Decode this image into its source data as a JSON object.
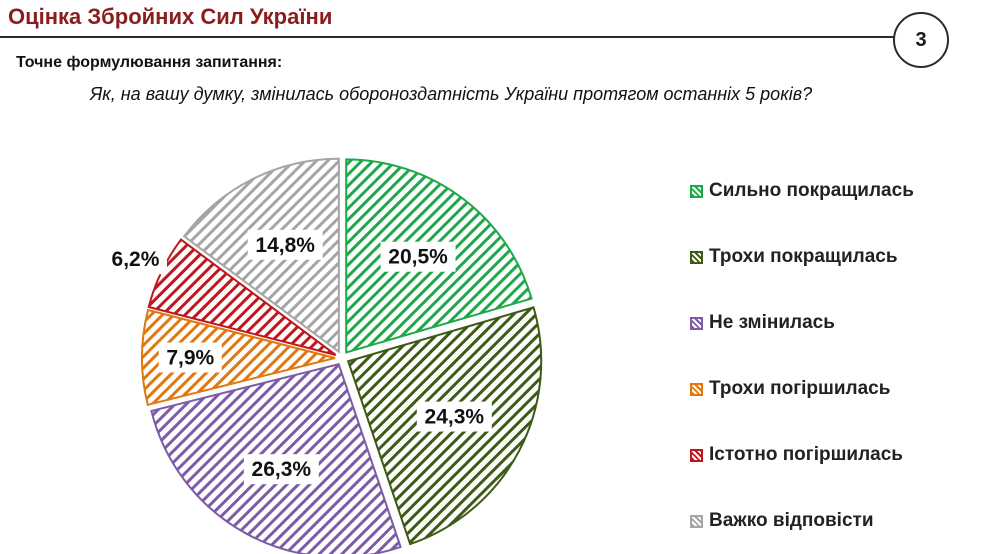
{
  "header": {
    "title": "Оцінка Збройних Сил України",
    "page_number": "3"
  },
  "question": {
    "heading": "Точне формулювання запитання:",
    "text": "Як, на вашу думку, змінилась обороноздатність України протягом останніх 5 років?"
  },
  "chart_data": {
    "type": "pie",
    "slices": [
      {
        "name": "Сильно покращилась",
        "value": 20.5,
        "label": "20,5%",
        "color": "#1fa84a"
      },
      {
        "name": "Трохи покращилась",
        "value": 24.3,
        "label": "24,3%",
        "color": "#3d5a16"
      },
      {
        "name": "Не змінилась",
        "value": 26.3,
        "label": "26,3%",
        "color": "#7d5ba6"
      },
      {
        "name": "Трохи погіршилась",
        "value": 7.9,
        "label": "7,9%",
        "color": "#e0780f"
      },
      {
        "name": "Істотно погіршилась",
        "value": 6.2,
        "label": "6,2%",
        "color": "#c0161d"
      },
      {
        "name": "Важко відповісти",
        "value": 14.8,
        "label": "14,8%",
        "color": "#a5a5a5"
      }
    ],
    "start_angle": "12 o'clock",
    "direction": "clockwise",
    "style": "diagonal hatched fill, exploded slices",
    "legend_position": "right"
  }
}
